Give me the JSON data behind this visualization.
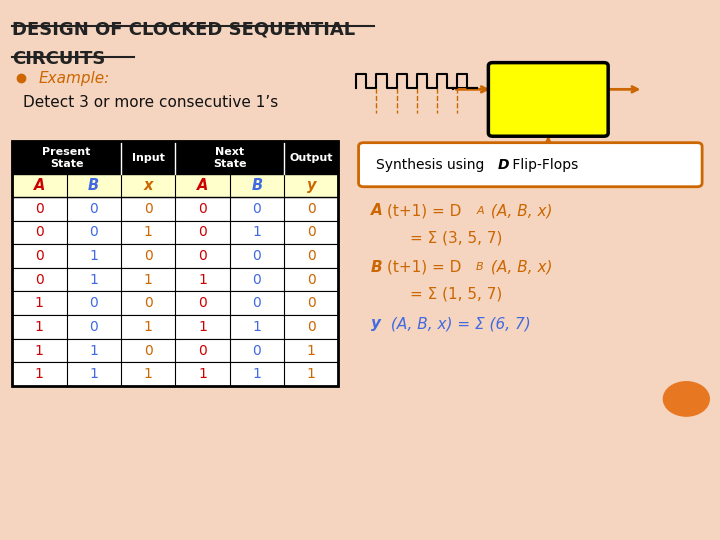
{
  "title_line1": "DESIGN OF CLOCKED SEQUENTIAL",
  "title_line2": "CIRCUITS",
  "example_label": "Example:",
  "detect_text": "Detect 3 or more consecutive 1’s",
  "bg_color": "#f5d5c0",
  "table_header_bg": "#000000",
  "table_ab_bg": "#ffffcc",
  "table_data": [
    [
      0,
      0,
      0,
      0,
      0,
      0
    ],
    [
      0,
      0,
      1,
      0,
      1,
      0
    ],
    [
      0,
      1,
      0,
      0,
      0,
      0
    ],
    [
      0,
      1,
      1,
      1,
      0,
      0
    ],
    [
      1,
      0,
      0,
      0,
      0,
      0
    ],
    [
      1,
      0,
      1,
      1,
      1,
      0
    ],
    [
      1,
      1,
      0,
      0,
      0,
      1
    ],
    [
      1,
      1,
      1,
      1,
      1,
      1
    ]
  ],
  "orange_color": "#cc6600",
  "blue_color": "#4169E1",
  "red_color": "#cc0000",
  "title_color": "#222222",
  "col_labels": [
    "A",
    "B",
    "x",
    "A",
    "B",
    "y"
  ],
  "sigma": "Σ"
}
